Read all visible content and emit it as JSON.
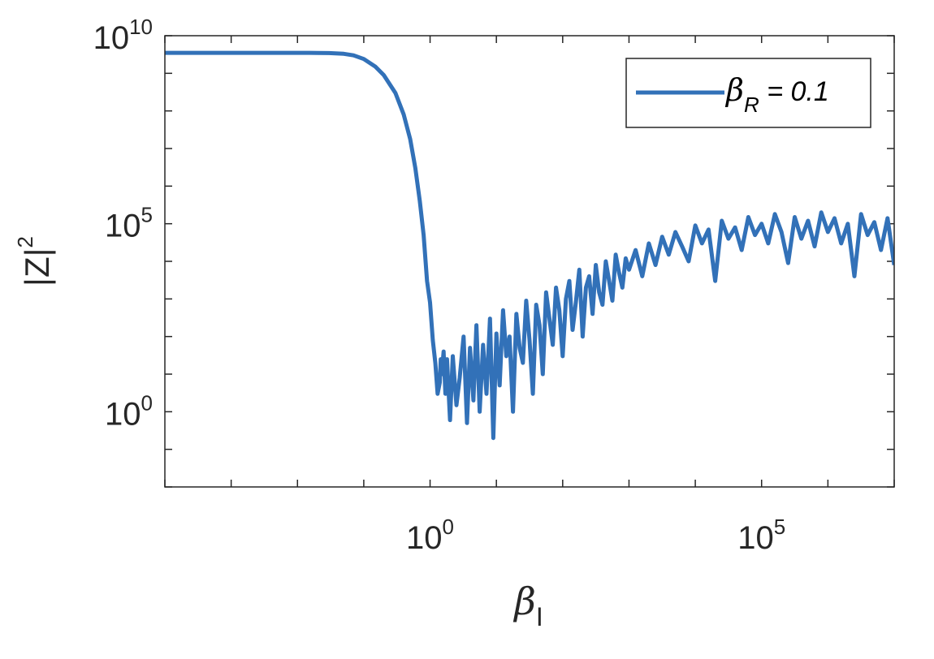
{
  "chart_data": {
    "type": "line",
    "xscale": "log",
    "yscale": "log",
    "xlim": [
      0.0001,
      10000000
    ],
    "ylim": [
      0.01,
      10000000000
    ],
    "xticks": [
      {
        "value": 1,
        "base": "10",
        "exp": "0"
      },
      {
        "value": 100000,
        "base": "10",
        "exp": "5"
      }
    ],
    "yticks": [
      {
        "value": 1,
        "base": "10",
        "exp": "0"
      },
      {
        "value": 100000,
        "base": "10",
        "exp": "5"
      },
      {
        "value": 10000000000,
        "base": "10",
        "exp": "10"
      }
    ],
    "xlabel": {
      "symbol": "β",
      "sub": "I"
    },
    "ylabel": {
      "main": "|Z|",
      "sup": "2"
    },
    "legend": {
      "position": "top-right",
      "symbol": "β",
      "sub": "R",
      "rest": " = 0.1"
    },
    "grid": false,
    "color": "#3271b8",
    "series": [
      {
        "x": [
          0.0001,
          0.001,
          0.005,
          0.01,
          0.02,
          0.03,
          0.05,
          0.07,
          0.1,
          0.15,
          0.2,
          0.3,
          0.4,
          0.5,
          0.6,
          0.7,
          0.8,
          0.9,
          1.0,
          1.1,
          1.2,
          1.3,
          1.4,
          1.45,
          1.5,
          1.6,
          1.7,
          1.8,
          2.0,
          2.2,
          2.5,
          2.8,
          3.2,
          3.6,
          4.0,
          4.5,
          5.0,
          5.6,
          6.3,
          7.1,
          8.0,
          9.0,
          10.0,
          11.2,
          12.6,
          14.1,
          15.8,
          17.8,
          20.0,
          22.4,
          25.1,
          28.2,
          31.6,
          35.5,
          39.8,
          44.7,
          50.1,
          56.2,
          63.1,
          70.8,
          79.4,
          89.1,
          100,
          112,
          126,
          141,
          158,
          178,
          200,
          224,
          251,
          282,
          316,
          355,
          398,
          447,
          501,
          562,
          631,
          708,
          794,
          891,
          1000,
          1259,
          1585,
          1995,
          2512,
          3162,
          3981,
          5012,
          6310,
          7943,
          10000,
          12589,
          15849,
          19953,
          25119,
          31623,
          39811,
          50119,
          63096,
          79433,
          100000,
          125893,
          158489,
          199526,
          251189,
          316228,
          398107,
          501187,
          630957,
          794328,
          1000000,
          1258925,
          1584893,
          1995262,
          2511886,
          3162278,
          3981072,
          5011872,
          6309573,
          7943282,
          10000000
        ],
        "y": [
          3500000000,
          3500000000,
          3500000000,
          3500000000,
          3490000000,
          3450000000,
          3300000000,
          3000000000,
          2400000000,
          1500000000,
          900000000,
          300000000,
          80000000,
          18000000,
          3000000,
          400000,
          50000,
          3000,
          800,
          80,
          20,
          3,
          6,
          25,
          10,
          40,
          3,
          25,
          0.6,
          30,
          1.5,
          8,
          100,
          0.5,
          50,
          2,
          200,
          1,
          60,
          3,
          300,
          0.2,
          120,
          5,
          500,
          30,
          100,
          1,
          400,
          50,
          20,
          900,
          80,
          3,
          700,
          200,
          10,
          1500,
          300,
          60,
          2000,
          500,
          30,
          1000,
          3000,
          150,
          800,
          6000,
          100,
          2000,
          4000,
          400,
          8000,
          1500,
          700,
          10000,
          3000,
          900,
          15000,
          5000,
          2000,
          12000,
          6000,
          20000,
          4000,
          30000,
          8000,
          45000,
          15000,
          60000,
          25000,
          10000,
          90000,
          30000,
          70000,
          3000,
          120000,
          40000,
          80000,
          20000,
          150000,
          50000,
          100000,
          30000,
          180000,
          60000,
          9000,
          150000,
          40000,
          120000,
          25000,
          200000,
          60000,
          140000,
          30000,
          100000,
          4000,
          180000,
          50000,
          110000,
          20000,
          140000,
          8000
        ]
      }
    ]
  }
}
